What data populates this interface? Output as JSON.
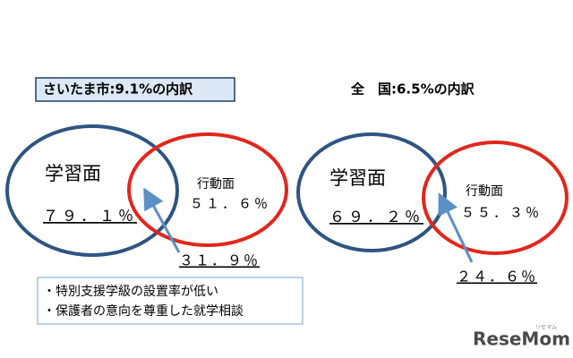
{
  "left": {
    "title": "さいたま市:9.1%の内訳",
    "circle_a": {
      "label": "学習面",
      "value": "７９．１％"
    },
    "circle_b": {
      "label": "行動面",
      "value": "５１．６％"
    },
    "overlap": "３１．９％",
    "notes": [
      "・特別支援学級の設置率が低い",
      "・保護者の意向を尊重した就学相談"
    ]
  },
  "right": {
    "title": "全　国:6.5%の内訳",
    "circle_a": {
      "label": "学習面",
      "value": "６９．２％"
    },
    "circle_b": {
      "label": "行動面",
      "value": "５５．３％"
    },
    "overlap": "２４．６％"
  },
  "logo": {
    "name": "ReseMom",
    "kana": "リセマム"
  }
}
